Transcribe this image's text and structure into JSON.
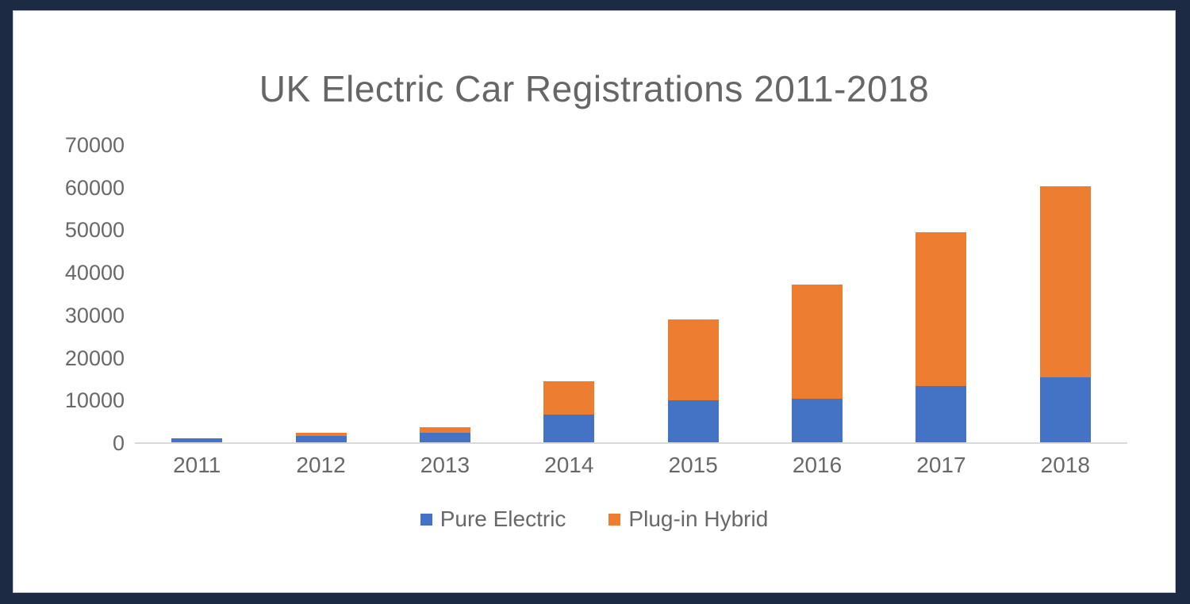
{
  "window": {
    "frame_color": "#1c2a44",
    "panel_color": "#ffffff"
  },
  "chart_data": {
    "type": "bar",
    "stacked": true,
    "title": "UK Electric Car Registrations 2011-2018",
    "categories": [
      "2011",
      "2012",
      "2013",
      "2014",
      "2015",
      "2016",
      "2017",
      "2018"
    ],
    "series": [
      {
        "name": "Pure Electric",
        "color": "#4472c4",
        "values": [
          1200,
          1600,
          2500,
          6700,
          10000,
          10400,
          13500,
          15500
        ]
      },
      {
        "name": "Plug-in Hybrid",
        "color": "#ed7d31",
        "values": [
          0,
          800,
          1300,
          7800,
          19000,
          26800,
          36000,
          44800
        ]
      }
    ],
    "totals": [
      1200,
      2400,
      3800,
      14500,
      29000,
      37200,
      49500,
      60300
    ],
    "xlabel": "",
    "ylabel": "",
    "ylim": [
      0,
      70000
    ],
    "y_ticks": [
      0,
      10000,
      20000,
      30000,
      40000,
      50000,
      60000,
      70000
    ],
    "grid": false,
    "legend_position": "bottom",
    "axis_color": "#d9d9d9",
    "text_color": "#686868"
  }
}
